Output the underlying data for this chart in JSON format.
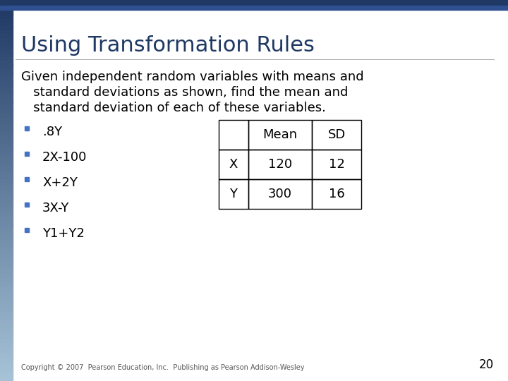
{
  "title": "Using Transformation Rules",
  "title_color": "#1F3864",
  "title_fontsize": 22,
  "body_text_line1": "Given independent random variables with means and",
  "body_text_line2": "   standard deviations as shown, find the mean and",
  "body_text_line3": "   standard deviation of each of these variables.",
  "bullet_items": [
    ".8Y",
    "2X-100",
    "X+2Y",
    "3X-Y",
    "Y1+Y2"
  ],
  "bullet_color": "#4472C4",
  "body_fontsize": 13,
  "table_headers": [
    "",
    "Mean",
    "SD"
  ],
  "table_rows": [
    [
      "X",
      "120",
      "12"
    ],
    [
      "Y",
      "300",
      "16"
    ]
  ],
  "table_fontsize": 13,
  "copyright_text": "Copyright © 2007  Pearson Education, Inc.  Publishing as Pearson Addison-Wesley",
  "page_number": "20",
  "slide_bg": "#FFFFFF",
  "top_bar_color1": "#1F3864",
  "top_bar_color2": "#2E5090",
  "left_strip_top": "#1F3864",
  "left_strip_bottom": "#A8C4D8"
}
